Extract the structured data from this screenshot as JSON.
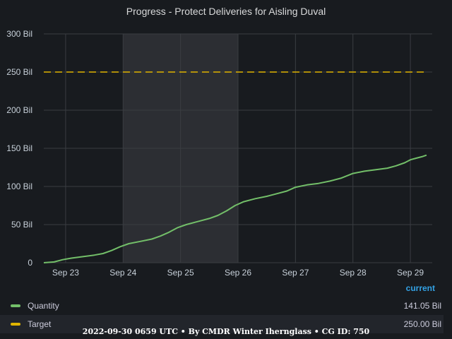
{
  "chart_data": {
    "type": "line",
    "title": "Progress - Protect Deliveries for Aisling Duval",
    "x_ticks": [
      "Sep 23",
      "Sep 24",
      "Sep 25",
      "Sep 26",
      "Sep 27",
      "Sep 28",
      "Sep 29"
    ],
    "y_ticks": [
      "0",
      "50 Bil",
      "100 Bil",
      "150 Bil",
      "200 Bil",
      "250 Bil",
      "300 Bil"
    ],
    "ylim": [
      0,
      300
    ],
    "xlim": [
      -0.38,
      6.38
    ],
    "highlight_range": [
      1,
      3
    ],
    "grid": true,
    "legend_placement": "bottom",
    "series": [
      {
        "name": "Quantity",
        "color": "#73bf69",
        "style": "solid",
        "points": [
          [
            -0.38,
            0
          ],
          [
            -0.2,
            1
          ],
          [
            -0.05,
            4
          ],
          [
            0.1,
            6
          ],
          [
            0.3,
            8
          ],
          [
            0.5,
            10
          ],
          [
            0.65,
            12
          ],
          [
            0.8,
            16
          ],
          [
            0.95,
            21
          ],
          [
            1.1,
            25
          ],
          [
            1.3,
            28
          ],
          [
            1.5,
            31
          ],
          [
            1.65,
            35
          ],
          [
            1.8,
            40
          ],
          [
            1.95,
            46
          ],
          [
            2.1,
            50
          ],
          [
            2.3,
            54
          ],
          [
            2.5,
            58
          ],
          [
            2.65,
            62
          ],
          [
            2.8,
            68
          ],
          [
            2.95,
            75
          ],
          [
            3.1,
            80
          ],
          [
            3.3,
            84
          ],
          [
            3.5,
            87
          ],
          [
            3.65,
            90
          ],
          [
            3.85,
            94
          ],
          [
            4.0,
            99
          ],
          [
            4.2,
            102
          ],
          [
            4.4,
            104
          ],
          [
            4.6,
            107
          ],
          [
            4.8,
            111
          ],
          [
            5.0,
            117
          ],
          [
            5.2,
            120
          ],
          [
            5.4,
            122
          ],
          [
            5.6,
            124
          ],
          [
            5.75,
            127
          ],
          [
            5.9,
            131
          ],
          [
            6.0,
            135
          ],
          [
            6.1,
            137
          ],
          [
            6.2,
            139
          ],
          [
            6.28,
            141.05
          ]
        ]
      },
      {
        "name": "Target",
        "color": "#e0b400",
        "style": "dashed",
        "points": [
          [
            -0.38,
            250
          ],
          [
            6.28,
            250
          ]
        ]
      }
    ]
  },
  "legend": {
    "header": "current",
    "rows": [
      {
        "name": "Quantity",
        "value": "141.05 Bil",
        "color": "#73bf69"
      },
      {
        "name": "Target",
        "value": "250.00 Bil",
        "color": "#e0b400"
      }
    ]
  },
  "footer": "2022-09-30 0659 UTC • By CMDR Winter Iherngl­ass • CG ID: 750"
}
